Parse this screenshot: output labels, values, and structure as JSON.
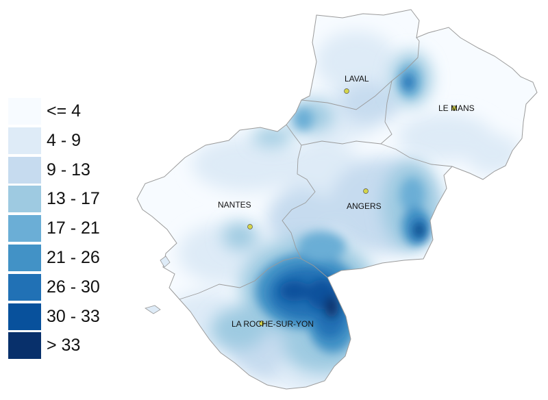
{
  "legend": {
    "classes": [
      {
        "label": "<= 4",
        "color": "#f7fbff"
      },
      {
        "label": "4 - 9",
        "color": "#deebf7"
      },
      {
        "label": "9 - 13",
        "color": "#c6dbef"
      },
      {
        "label": "13 - 17",
        "color": "#9ecae1"
      },
      {
        "label": "17 - 21",
        "color": "#6baed6"
      },
      {
        "label": "21 - 26",
        "color": "#4292c6"
      },
      {
        "label": "26 - 30",
        "color": "#2171b5"
      },
      {
        "label": "30 - 33",
        "color": "#08519c"
      },
      {
        "label": "> 33",
        "color": "#08306b"
      }
    ]
  },
  "cities": [
    {
      "id": "laval",
      "name": "LAVAL"
    },
    {
      "id": "le-mans",
      "name": "LE MANS"
    },
    {
      "id": "angers",
      "name": "ANGERS"
    },
    {
      "id": "nantes",
      "name": "NANTES"
    },
    {
      "id": "la-roche-sur-yon",
      "name": "LA ROCHE-SUR-YON"
    }
  ],
  "marker_color": "#d4d44a",
  "border_color": "#9a9a9a"
}
